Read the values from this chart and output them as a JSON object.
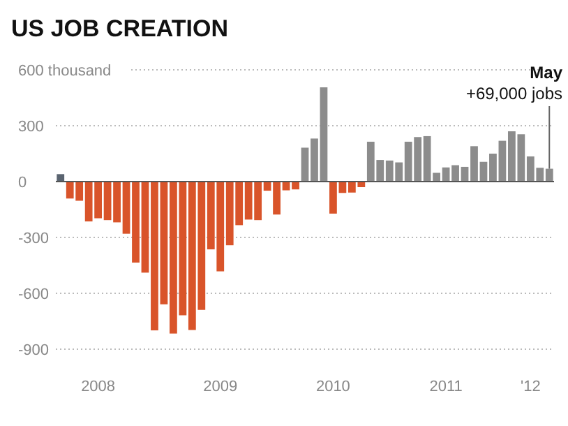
{
  "chart_data": {
    "type": "bar",
    "title": "US JOB CREATION",
    "categories": [
      null,
      null,
      null,
      null,
      "2008",
      null,
      null,
      null,
      null,
      null,
      null,
      null,
      null,
      null,
      null,
      null,
      null,
      "2009",
      null,
      null,
      null,
      null,
      null,
      null,
      null,
      null,
      null,
      null,
      null,
      "2010",
      null,
      null,
      null,
      null,
      null,
      null,
      null,
      null,
      null,
      null,
      null,
      "2011",
      null,
      null,
      null,
      null,
      null,
      null,
      null,
      null,
      "'12",
      null,
      "May"
    ],
    "values": [
      40,
      -91,
      -103,
      -214,
      -197,
      -207,
      -219,
      -280,
      -435,
      -489,
      -799,
      -659,
      -816,
      -718,
      -797,
      -689,
      -364,
      -482,
      -342,
      -234,
      -204,
      -207,
      -49,
      -177,
      -47,
      -42,
      182,
      231,
      506,
      -172,
      -61,
      -59,
      -30,
      214,
      116,
      113,
      103,
      214,
      239,
      244,
      47,
      76,
      88,
      79,
      190,
      106,
      150,
      219,
      270,
      254,
      135,
      74,
      69
    ],
    "colors": [
      "#5a6470",
      "#d9542a",
      "#d9542a",
      "#d9542a",
      "#d9542a",
      "#d9542a",
      "#d9542a",
      "#d9542a",
      "#d9542a",
      "#d9542a",
      "#d9542a",
      "#d9542a",
      "#d9542a",
      "#d9542a",
      "#d9542a",
      "#d9542a",
      "#d9542a",
      "#d9542a",
      "#d9542a",
      "#d9542a",
      "#d9542a",
      "#d9542a",
      "#d9542a",
      "#d9542a",
      "#d9542a",
      "#d9542a",
      "#8c8c8c",
      "#8c8c8c",
      "#8c8c8c",
      "#d9542a",
      "#d9542a",
      "#d9542a",
      "#d9542a",
      "#8c8c8c",
      "#8c8c8c",
      "#8c8c8c",
      "#8c8c8c",
      "#8c8c8c",
      "#8c8c8c",
      "#8c8c8c",
      "#8c8c8c",
      "#8c8c8c",
      "#8c8c8c",
      "#8c8c8c",
      "#8c8c8c",
      "#8c8c8c",
      "#8c8c8c",
      "#8c8c8c",
      "#8c8c8c",
      "#8c8c8c",
      "#8c8c8c",
      "#8c8c8c",
      "#8c8c8c"
    ],
    "ylim": [
      -900,
      600
    ],
    "yticks": [
      {
        "value": 600,
        "label": "600 thousand"
      },
      300,
      0,
      -300,
      -600,
      -900
    ],
    "grid": "y",
    "annotations": [
      {
        "text": "+69,000 jobs",
        "x": "May",
        "y": 69
      }
    ]
  }
}
